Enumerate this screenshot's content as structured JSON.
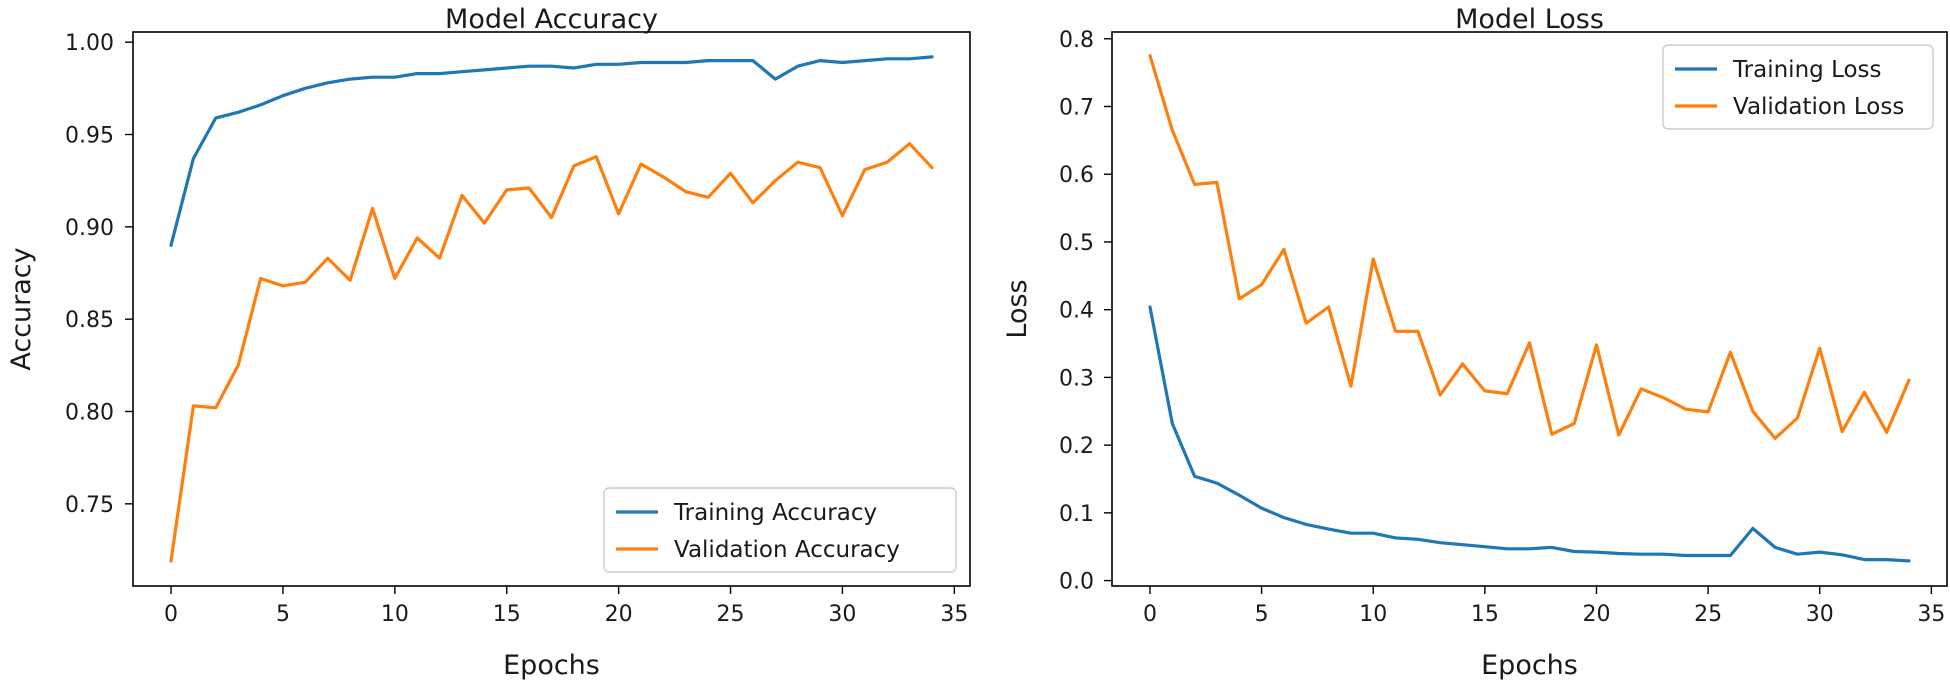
{
  "colors": {
    "series1": "#1f77b4",
    "series2": "#ff7f0e",
    "axis": "#000000",
    "legend_border": "#cccccc"
  },
  "chart_data": [
    {
      "type": "line",
      "title": "Model Accuracy",
      "xlabel": "Epochs",
      "ylabel": "Accuracy",
      "xlim": [
        -1.7,
        35.7
      ],
      "ylim": [
        0.7055,
        1.0055
      ],
      "xticks": [
        0,
        5,
        10,
        15,
        20,
        25,
        30,
        35
      ],
      "xtick_labels": [
        "0",
        "5",
        "10",
        "15",
        "20",
        "25",
        "30",
        "35"
      ],
      "yticks": [
        0.75,
        0.8,
        0.85,
        0.9,
        0.95,
        1.0
      ],
      "ytick_labels": [
        "0.75",
        "0.80",
        "0.85",
        "0.90",
        "0.95",
        "1.00"
      ],
      "legend_position": "lower-right",
      "x": [
        0,
        1,
        2,
        3,
        4,
        5,
        6,
        7,
        8,
        9,
        10,
        11,
        12,
        13,
        14,
        15,
        16,
        17,
        18,
        19,
        20,
        21,
        22,
        23,
        24,
        25,
        26,
        27,
        28,
        29,
        30,
        31,
        32,
        33,
        34
      ],
      "series": [
        {
          "name": "Training Accuracy",
          "color": "#1f77b4",
          "values": [
            0.89,
            0.937,
            0.959,
            0.962,
            0.966,
            0.971,
            0.975,
            0.978,
            0.98,
            0.981,
            0.981,
            0.983,
            0.983,
            0.984,
            0.985,
            0.986,
            0.987,
            0.987,
            0.986,
            0.988,
            0.988,
            0.989,
            0.989,
            0.989,
            0.99,
            0.99,
            0.99,
            0.98,
            0.987,
            0.99,
            0.989,
            0.99,
            0.991,
            0.991,
            0.992
          ]
        },
        {
          "name": "Validation Accuracy",
          "color": "#ff7f0e",
          "values": [
            0.719,
            0.803,
            0.802,
            0.825,
            0.872,
            0.868,
            0.87,
            0.883,
            0.871,
            0.91,
            0.872,
            0.894,
            0.883,
            0.917,
            0.902,
            0.92,
            0.921,
            0.905,
            0.933,
            0.938,
            0.907,
            0.934,
            0.927,
            0.919,
            0.916,
            0.929,
            0.913,
            0.925,
            0.935,
            0.932,
            0.906,
            0.931,
            0.935,
            0.945,
            0.932
          ]
        }
      ]
    },
    {
      "type": "line",
      "title": "Model Loss",
      "xlabel": "Epochs",
      "ylabel": "Loss",
      "xlim": [
        -1.7,
        35.7
      ],
      "ylim": [
        -0.008,
        0.81
      ],
      "xticks": [
        0,
        5,
        10,
        15,
        20,
        25,
        30,
        35
      ],
      "xtick_labels": [
        "0",
        "5",
        "10",
        "15",
        "20",
        "25",
        "30",
        "35"
      ],
      "yticks": [
        0.0,
        0.1,
        0.2,
        0.3,
        0.4,
        0.5,
        0.6,
        0.7,
        0.8
      ],
      "ytick_labels": [
        "0.0",
        "0.1",
        "0.2",
        "0.3",
        "0.4",
        "0.5",
        "0.6",
        "0.7",
        "0.8"
      ],
      "legend_position": "upper-right",
      "x": [
        0,
        1,
        2,
        3,
        4,
        5,
        6,
        7,
        8,
        9,
        10,
        11,
        12,
        13,
        14,
        15,
        16,
        17,
        18,
        19,
        20,
        21,
        22,
        23,
        24,
        25,
        26,
        27,
        28,
        29,
        30,
        31,
        32,
        33,
        34
      ],
      "series": [
        {
          "name": "Training Loss",
          "color": "#1f77b4",
          "values": [
            0.404,
            0.232,
            0.154,
            0.144,
            0.126,
            0.107,
            0.093,
            0.083,
            0.076,
            0.07,
            0.07,
            0.063,
            0.061,
            0.056,
            0.053,
            0.05,
            0.047,
            0.047,
            0.049,
            0.043,
            0.042,
            0.04,
            0.039,
            0.039,
            0.037,
            0.037,
            0.037,
            0.077,
            0.049,
            0.039,
            0.042,
            0.038,
            0.031,
            0.031,
            0.029
          ]
        },
        {
          "name": "Validation Loss",
          "color": "#ff7f0e",
          "values": [
            0.775,
            0.665,
            0.585,
            0.588,
            0.416,
            0.437,
            0.489,
            0.38,
            0.404,
            0.287,
            0.475,
            0.368,
            0.368,
            0.274,
            0.32,
            0.28,
            0.276,
            0.351,
            0.216,
            0.232,
            0.348,
            0.215,
            0.283,
            0.27,
            0.253,
            0.249,
            0.337,
            0.25,
            0.21,
            0.24,
            0.343,
            0.22,
            0.278,
            0.219,
            0.296
          ]
        }
      ]
    }
  ]
}
